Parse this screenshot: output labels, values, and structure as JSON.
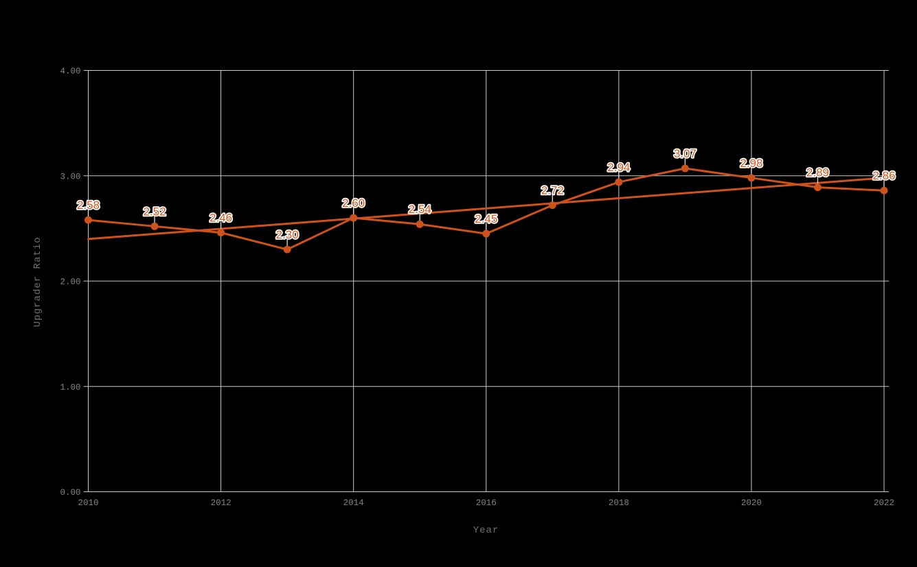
{
  "chart_data": {
    "type": "line",
    "title": "",
    "xlabel": "Year",
    "ylabel": "Upgrader Ratio",
    "x": [
      2010,
      2011,
      2012,
      2013,
      2014,
      2015,
      2016,
      2017,
      2018,
      2019,
      2020,
      2021,
      2022
    ],
    "series": [
      {
        "name": "Upgrader Ratio",
        "values": [
          2.58,
          2.52,
          2.46,
          2.3,
          2.6,
          2.54,
          2.45,
          2.72,
          2.94,
          3.07,
          2.98,
          2.89,
          2.86
        ]
      }
    ],
    "point_labels": [
      "2.58",
      "2.52",
      "2.46",
      "2.30",
      "2.60",
      "2.54",
      "2.45",
      "2.72",
      "2.94",
      "3.07",
      "2.98",
      "2.89",
      "2.86"
    ],
    "trendline": {
      "x_start": 2010,
      "y_start": 2.4,
      "x_end": 2022,
      "y_end": 2.98
    },
    "xlim": [
      2010,
      2022
    ],
    "ylim": [
      0,
      4
    ],
    "xtick_labels": [
      "2010",
      "2012",
      "2014",
      "2016",
      "2018",
      "2020",
      "2022"
    ],
    "ytick_labels": [
      "0.00",
      "1.00",
      "2.00",
      "3.00",
      "4.00"
    ],
    "grid": true,
    "legend_position": "none",
    "colors": {
      "background": "#000000",
      "series": "#cd521c",
      "value_label": "#d4571c",
      "value_label_outline": "#ffffff",
      "grid": "#c9c9c9",
      "leader": "#e2dfda",
      "tick_label": "#858585",
      "axis_title": "#70707a"
    }
  }
}
